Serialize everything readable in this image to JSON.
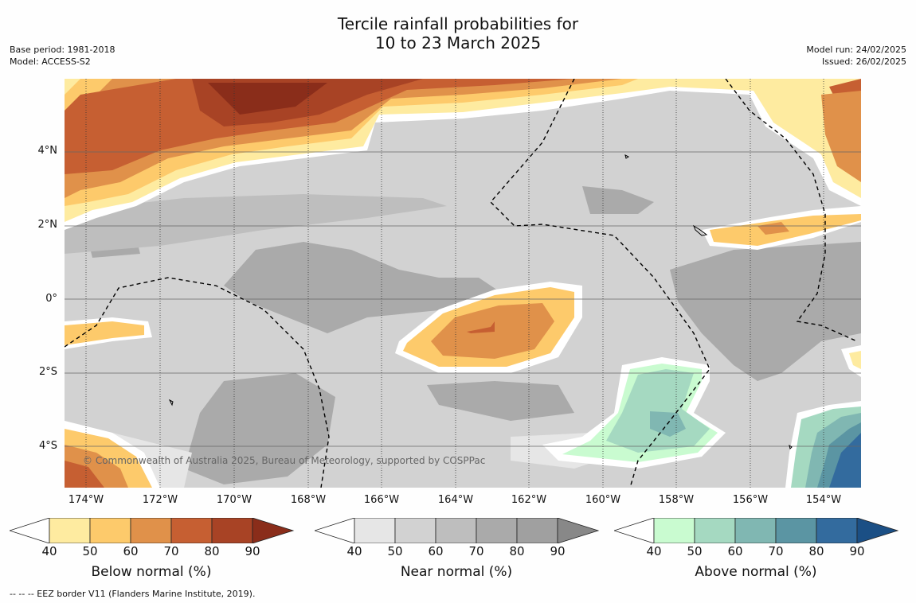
{
  "title_line1": "Tercile rainfall probabilities for",
  "title_line2": "10 to 23 March 2025",
  "base_period": "Base period: 1981-2018",
  "model": "Model: ACCESS-S2",
  "model_run": "Model run: 24/02/2025",
  "issued": "Issued: 26/02/2025",
  "copyright": "© Commonwealth of Australia 2025, Bureau of Meteorology, supported by COSPPac",
  "footer": "--  --  -- EEZ border V11 (Flanders Marine Institute, 2019).",
  "lat_labels": [
    "4°N",
    "2°N",
    "0°",
    "2°S",
    "4°S"
  ],
  "lon_labels": [
    "174°W",
    "172°W",
    "170°W",
    "168°W",
    "166°W",
    "164°W",
    "162°W",
    "160°W",
    "158°W",
    "156°W",
    "154°W"
  ],
  "colorbars": [
    {
      "title": "Below normal (%)",
      "ticks": [
        "40",
        "50",
        "60",
        "70",
        "80",
        "90"
      ],
      "colors": [
        "#ffffff",
        "#feeba0",
        "#fdca6b",
        "#e0914a",
        "#c65f32",
        "#a84325",
        "#8a2d1a"
      ]
    },
    {
      "title": "Near normal (%)",
      "ticks": [
        "40",
        "50",
        "60",
        "70",
        "80",
        "90"
      ],
      "colors": [
        "#ffffff",
        "#e6e6e6",
        "#d2d2d2",
        "#bebebe",
        "#aaaaaa",
        "#a0a0a0",
        "#888888"
      ]
    },
    {
      "title": "Above normal (%)",
      "ticks": [
        "40",
        "50",
        "60",
        "70",
        "80",
        "90"
      ],
      "colors": [
        "#ffffff",
        "#c9fbd0",
        "#a5d9c1",
        "#80b7b2",
        "#5b95a3",
        "#336b9e",
        "#1b4f85"
      ]
    }
  ]
}
